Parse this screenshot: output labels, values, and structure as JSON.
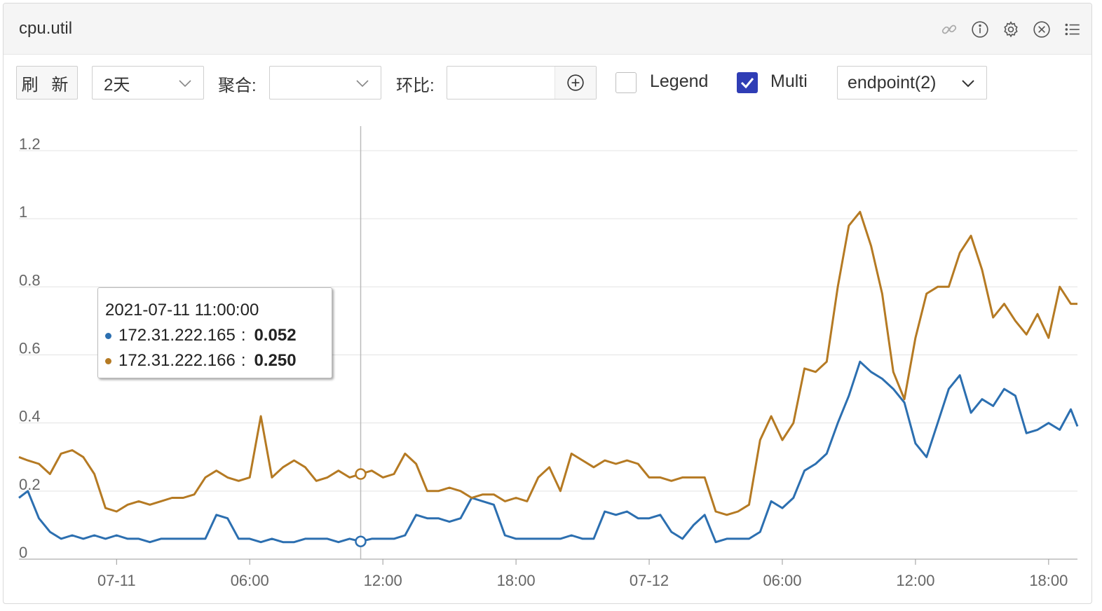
{
  "header": {
    "title": "cpu.util",
    "icons": [
      "link-icon",
      "info-icon",
      "gear-icon",
      "close-circle-icon",
      "list-icon"
    ]
  },
  "toolbar": {
    "refresh_label": "刷 新",
    "range_value": "2天",
    "agg_label": "聚合:",
    "agg_value": "",
    "compare_label": "环比:",
    "compare_value": "",
    "legend_label": "Legend",
    "legend_checked": false,
    "multi_label": "Multi",
    "multi_checked": true,
    "endpoint_value": "endpoint(2)"
  },
  "tooltip": {
    "time": "2021-07-11 11:00:00",
    "rows": [
      {
        "name": "172.31.222.165",
        "sep": ":",
        "value": "0.052",
        "color": "#2c6fb0"
      },
      {
        "name": "172.31.222.166",
        "sep": ":",
        "value": "0.250",
        "color": "#b57a23"
      }
    ]
  },
  "chart_data": {
    "type": "line",
    "title": "",
    "xlabel": "",
    "ylabel": "",
    "ylim": [
      0,
      1.2
    ],
    "y_ticks": [
      "0",
      "0.2",
      "0.4",
      "0.6",
      "0.8",
      "1",
      "1.2"
    ],
    "x_ticks": [
      "07-11",
      "06:00",
      "12:00",
      "18:00",
      "07-12",
      "06:00",
      "12:00",
      "18:00"
    ],
    "x_tick_hours": [
      0,
      6,
      12,
      18,
      24,
      30,
      36,
      42
    ],
    "x_range_hours": [
      -4.4,
      43.3
    ],
    "grid": true,
    "legend": "none",
    "crosshair_hour": 11,
    "series": [
      {
        "name": "172.31.222.165",
        "color": "#2c6fb0",
        "x_hours": [
          -4.4,
          -4,
          -3.5,
          -3,
          -2.5,
          -2,
          -1.5,
          -1,
          -0.5,
          0,
          0.5,
          1,
          1.5,
          2,
          2.5,
          3,
          3.5,
          4,
          4.5,
          5,
          5.5,
          6,
          6.5,
          7,
          7.5,
          8,
          8.5,
          9,
          9.5,
          10,
          10.5,
          11,
          11.5,
          12,
          12.5,
          13,
          13.5,
          14,
          14.5,
          15,
          15.5,
          16,
          16.5,
          17,
          17.5,
          18,
          18.5,
          19,
          19.5,
          20,
          20.5,
          21,
          21.5,
          22,
          22.5,
          23,
          23.5,
          24,
          24.5,
          25,
          25.5,
          26,
          26.5,
          27,
          27.5,
          28,
          28.5,
          29,
          29.5,
          30,
          30.5,
          31,
          31.5,
          32,
          32.5,
          33,
          33.5,
          34,
          34.5,
          35,
          35.5,
          36,
          36.5,
          37,
          37.5,
          38,
          38.5,
          39,
          39.5,
          40,
          40.5,
          41,
          41.5,
          42,
          42.5,
          43,
          43.3
        ],
        "values": [
          0.18,
          0.2,
          0.12,
          0.08,
          0.06,
          0.07,
          0.06,
          0.07,
          0.06,
          0.07,
          0.06,
          0.06,
          0.05,
          0.06,
          0.06,
          0.06,
          0.06,
          0.06,
          0.13,
          0.12,
          0.06,
          0.06,
          0.05,
          0.06,
          0.05,
          0.05,
          0.06,
          0.06,
          0.06,
          0.05,
          0.06,
          0.052,
          0.06,
          0.06,
          0.06,
          0.07,
          0.13,
          0.12,
          0.12,
          0.11,
          0.12,
          0.18,
          0.17,
          0.16,
          0.07,
          0.06,
          0.06,
          0.06,
          0.06,
          0.06,
          0.07,
          0.06,
          0.06,
          0.14,
          0.13,
          0.14,
          0.12,
          0.12,
          0.13,
          0.08,
          0.06,
          0.1,
          0.13,
          0.05,
          0.06,
          0.06,
          0.06,
          0.08,
          0.17,
          0.15,
          0.18,
          0.26,
          0.28,
          0.31,
          0.4,
          0.48,
          0.58,
          0.55,
          0.53,
          0.5,
          0.46,
          0.34,
          0.3,
          0.4,
          0.5,
          0.54,
          0.43,
          0.47,
          0.45,
          0.5,
          0.48,
          0.37,
          0.38,
          0.4,
          0.38,
          0.44,
          0.39
        ]
      },
      {
        "name": "172.31.222.166",
        "color": "#b57a23",
        "x_hours": [
          -4.4,
          -4,
          -3.5,
          -3,
          -2.5,
          -2,
          -1.5,
          -1,
          -0.5,
          0,
          0.5,
          1,
          1.5,
          2,
          2.5,
          3,
          3.5,
          4,
          4.5,
          5,
          5.5,
          6,
          6.5,
          7,
          7.5,
          8,
          8.5,
          9,
          9.5,
          10,
          10.5,
          11,
          11.5,
          12,
          12.5,
          13,
          13.5,
          14,
          14.5,
          15,
          15.5,
          16,
          16.5,
          17,
          17.5,
          18,
          18.5,
          19,
          19.5,
          20,
          20.5,
          21,
          21.5,
          22,
          22.5,
          23,
          23.5,
          24,
          24.5,
          25,
          25.5,
          26,
          26.5,
          27,
          27.5,
          28,
          28.5,
          29,
          29.5,
          30,
          30.5,
          31,
          31.5,
          32,
          32.5,
          33,
          33.5,
          34,
          34.5,
          35,
          35.5,
          36,
          36.5,
          37,
          37.5,
          38,
          38.5,
          39,
          39.5,
          40,
          40.5,
          41,
          41.5,
          42,
          42.5,
          43,
          43.3
        ],
        "values": [
          0.3,
          0.29,
          0.28,
          0.25,
          0.31,
          0.32,
          0.3,
          0.25,
          0.15,
          0.14,
          0.16,
          0.17,
          0.16,
          0.17,
          0.18,
          0.18,
          0.19,
          0.24,
          0.26,
          0.24,
          0.23,
          0.24,
          0.42,
          0.24,
          0.27,
          0.29,
          0.27,
          0.23,
          0.24,
          0.26,
          0.24,
          0.25,
          0.26,
          0.24,
          0.25,
          0.31,
          0.28,
          0.2,
          0.2,
          0.21,
          0.2,
          0.18,
          0.19,
          0.19,
          0.17,
          0.18,
          0.17,
          0.24,
          0.27,
          0.2,
          0.31,
          0.29,
          0.27,
          0.29,
          0.28,
          0.29,
          0.28,
          0.24,
          0.24,
          0.23,
          0.24,
          0.24,
          0.24,
          0.14,
          0.13,
          0.14,
          0.16,
          0.35,
          0.42,
          0.35,
          0.4,
          0.56,
          0.55,
          0.58,
          0.8,
          0.98,
          1.02,
          0.92,
          0.78,
          0.55,
          0.47,
          0.65,
          0.78,
          0.8,
          0.8,
          0.9,
          0.95,
          0.85,
          0.71,
          0.75,
          0.7,
          0.66,
          0.72,
          0.65,
          0.8,
          0.75,
          0.75
        ]
      }
    ]
  }
}
